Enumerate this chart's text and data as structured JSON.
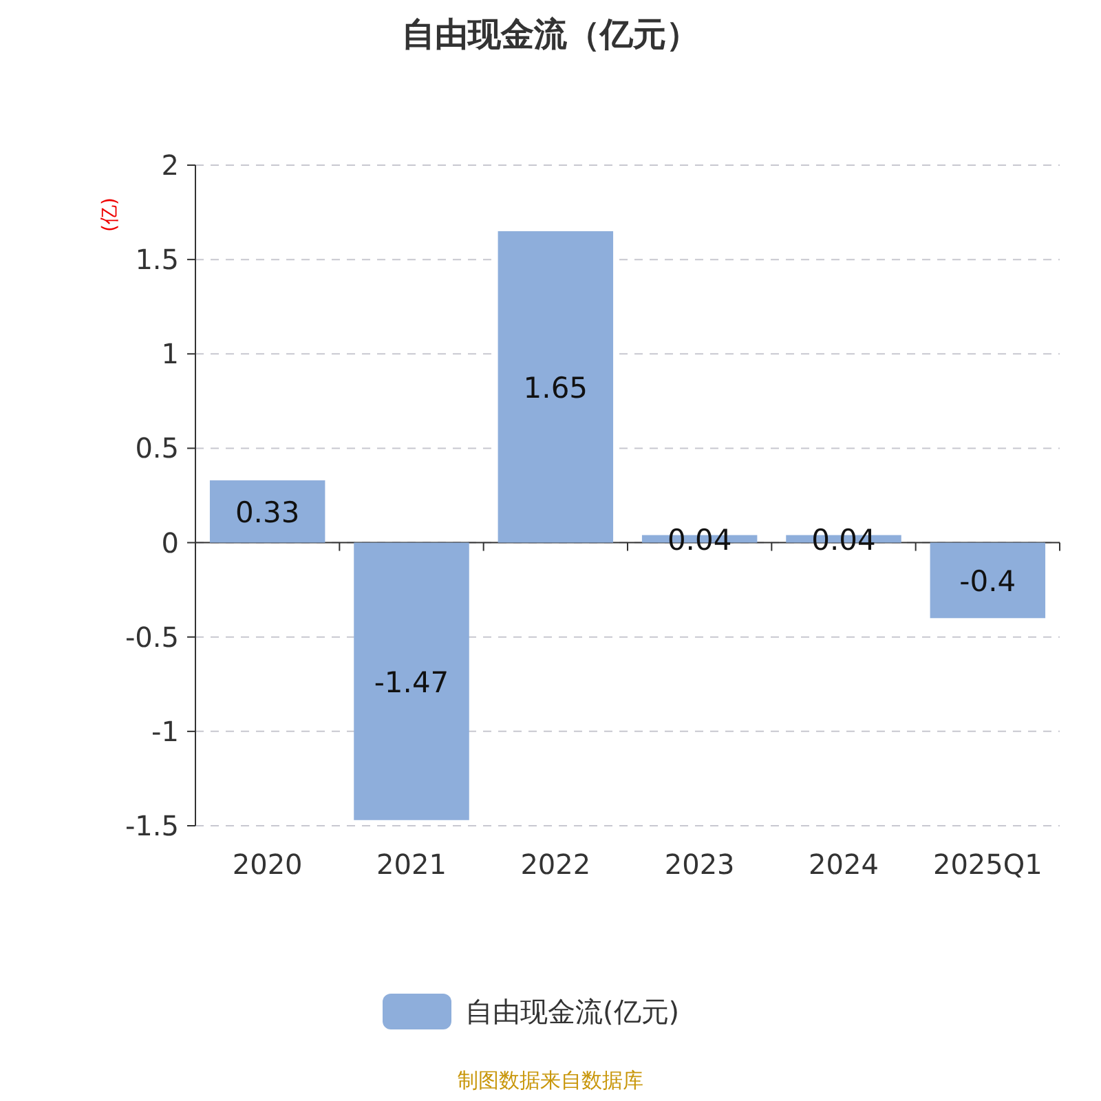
{
  "chart_data": {
    "type": "bar",
    "title": "自由现金流（亿元）",
    "ylabel": "(亿)",
    "categories": [
      "2020",
      "2021",
      "2022",
      "2023",
      "2024",
      "2025Q1"
    ],
    "series": [
      {
        "name": "自由现金流(亿元)",
        "color": "#8eaedb",
        "values": [
          0.33,
          -1.47,
          1.65,
          0.04,
          0.04,
          -0.4
        ]
      }
    ],
    "ylim": [
      -1.5,
      2
    ],
    "yticks": [
      -1.5,
      -1,
      -0.5,
      0,
      0.5,
      1,
      1.5,
      2
    ],
    "grid": "y",
    "legend": "bottom",
    "data_labels": true,
    "annotations": [
      "制图数据来自数据库"
    ]
  }
}
